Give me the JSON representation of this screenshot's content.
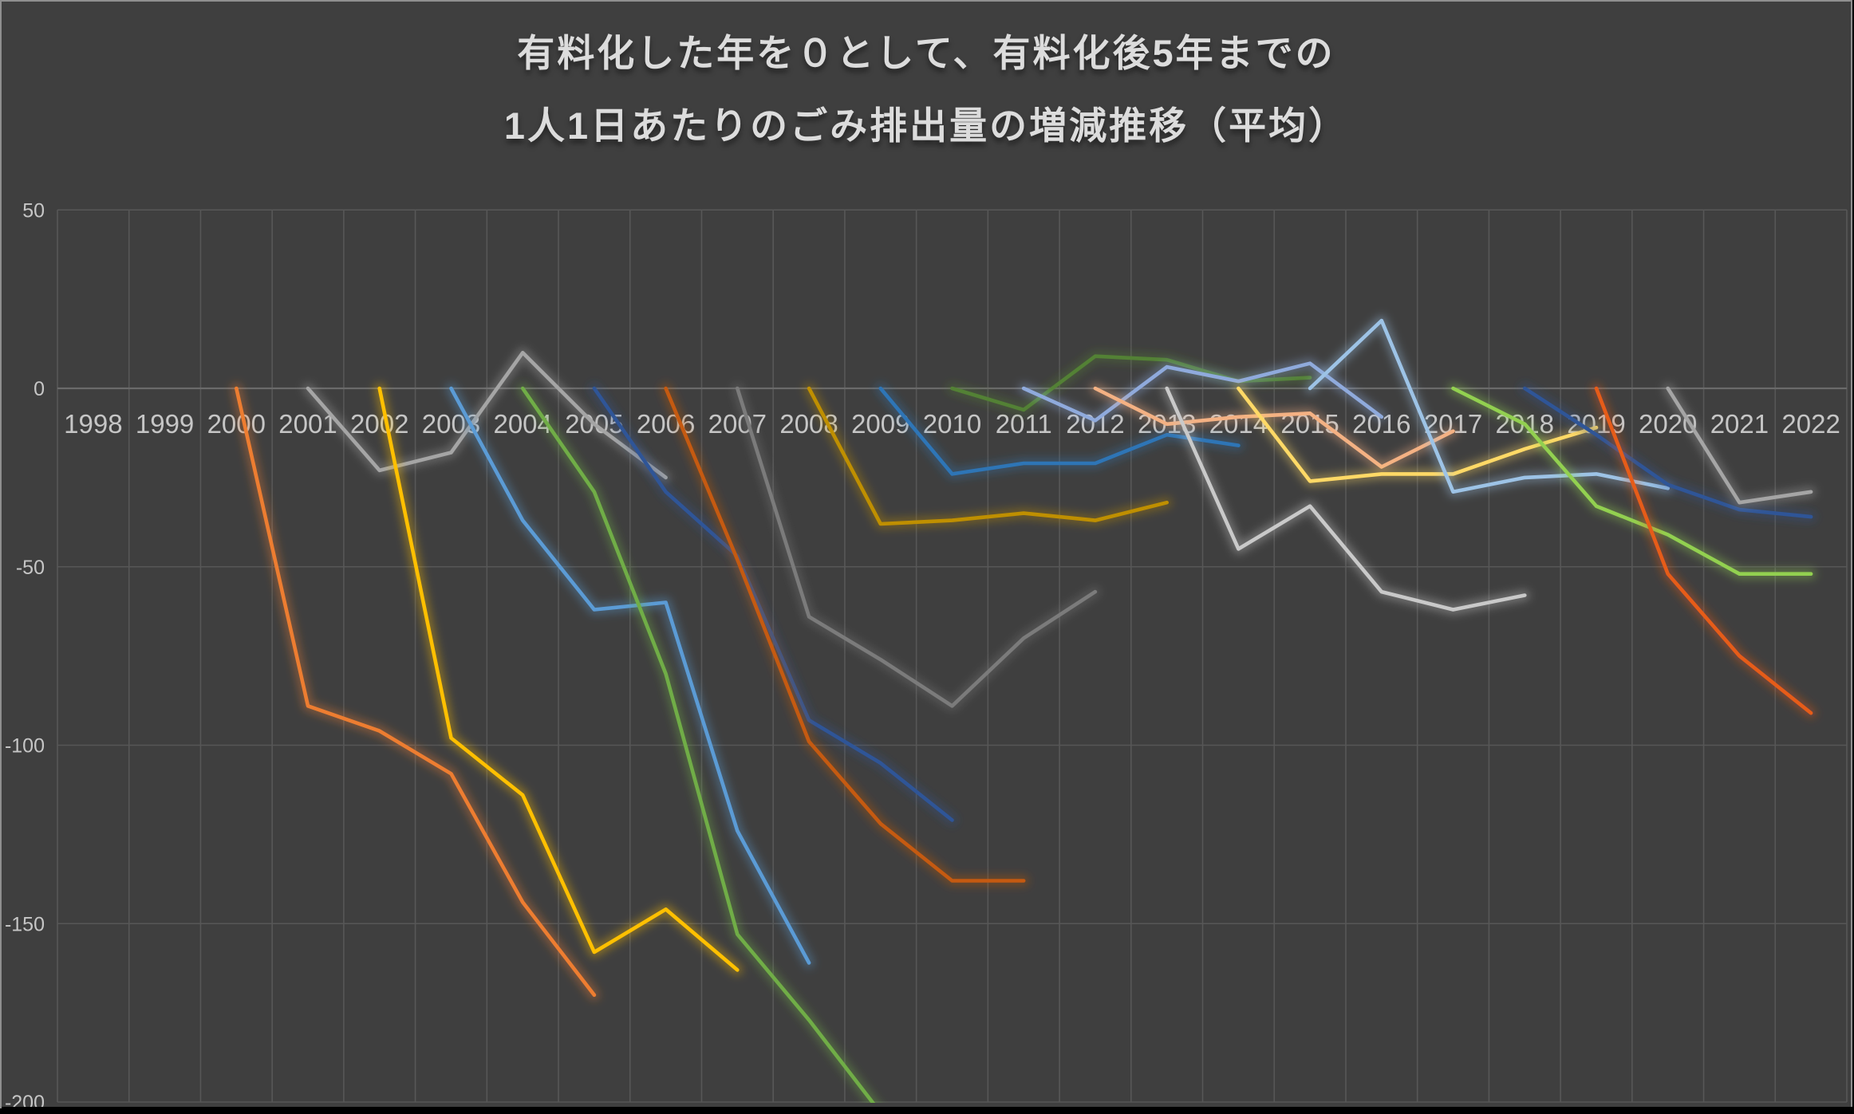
{
  "chart_data": {
    "type": "line",
    "title_lines": [
      "有料化した年を０として、有料化後5年までの",
      "1人1日あたりのごみ排出量の増減推移（平均）"
    ],
    "xlabel": "",
    "ylabel": "",
    "xlim": [
      1997.5,
      2022.5
    ],
    "ylim": [
      -200,
      50
    ],
    "x_ticks": [
      1998,
      1999,
      2000,
      2001,
      2002,
      2003,
      2004,
      2005,
      2006,
      2007,
      2008,
      2009,
      2010,
      2011,
      2012,
      2013,
      2014,
      2015,
      2016,
      2017,
      2018,
      2019,
      2020,
      2021,
      2022
    ],
    "y_ticks": [
      50,
      0,
      -50,
      -100,
      -150,
      -200
    ],
    "grid": true,
    "legend_position": "none",
    "colors": {
      "background": "#3F3F3F",
      "gridline": "#575757",
      "zero_line": "#6A6A6A",
      "tick_label": "#C6C6C6",
      "title": "#DCDCDC"
    },
    "series": [
      {
        "name": "2000",
        "start_year": 2000,
        "color": "#ED7D31",
        "values": [
          0,
          -89,
          -96,
          -108,
          -144,
          -170
        ]
      },
      {
        "name": "2001",
        "start_year": 2001,
        "color": "#A5A5A5",
        "values": [
          0,
          -23,
          -18,
          10,
          -10,
          -25
        ]
      },
      {
        "name": "2002",
        "start_year": 2002,
        "color": "#FFC000",
        "values": [
          0,
          -98,
          -114,
          -158,
          -146,
          -163
        ]
      },
      {
        "name": "2003",
        "start_year": 2003,
        "color": "#5B9BD5",
        "values": [
          0,
          -37,
          -62,
          -60,
          -124,
          -161
        ]
      },
      {
        "name": "2004",
        "start_year": 2004,
        "color": "#70AD47",
        "values": [
          0,
          -29,
          -80,
          -153,
          -177,
          -203
        ]
      },
      {
        "name": "2005",
        "start_year": 2005,
        "color": "#2F5597",
        "values": [
          0,
          -29,
          -47,
          -93,
          -105,
          -121
        ]
      },
      {
        "name": "2006",
        "start_year": 2006,
        "color": "#C55A11",
        "values": [
          0,
          -48,
          -99,
          -122,
          -138,
          -138
        ]
      },
      {
        "name": "2007",
        "start_year": 2007,
        "color": "#7B7B7B",
        "values": [
          0,
          -64,
          -76,
          -89,
          -70,
          -57
        ]
      },
      {
        "name": "2008",
        "start_year": 2008,
        "color": "#BF8F00",
        "values": [
          0,
          -38,
          -37,
          -35,
          -37,
          -32
        ]
      },
      {
        "name": "2009",
        "start_year": 2009,
        "color": "#2E75B6",
        "values": [
          0,
          -24,
          -21,
          -21,
          -13,
          -16
        ]
      },
      {
        "name": "2010",
        "start_year": 2010,
        "color": "#538135",
        "values": [
          0,
          -6,
          9,
          8,
          2,
          3
        ]
      },
      {
        "name": "2011",
        "start_year": 2011,
        "color": "#8FAADC",
        "values": [
          0,
          -9,
          6,
          2,
          7,
          -8
        ]
      },
      {
        "name": "2012",
        "start_year": 2012,
        "color": "#F4B183",
        "values": [
          0,
          -10,
          -8,
          -7,
          -22,
          -12
        ]
      },
      {
        "name": "2013",
        "start_year": 2013,
        "color": "#C9C9C9",
        "values": [
          0,
          -45,
          -33,
          -57,
          -62,
          -58
        ]
      },
      {
        "name": "2014",
        "start_year": 2014,
        "color": "#FFD966",
        "values": [
          0,
          -26,
          -24,
          -24,
          -17,
          -11
        ]
      },
      {
        "name": "2015",
        "start_year": 2015,
        "color": "#9DC3E6",
        "values": [
          0,
          19,
          -29,
          -25,
          -24,
          -28
        ]
      },
      {
        "name": "2017",
        "start_year": 2017,
        "color": "#92D050",
        "values": [
          0,
          -10,
          -33,
          -41,
          -52,
          -52
        ]
      },
      {
        "name": "2018",
        "start_year": 2018,
        "color": "#2F5597",
        "values": [
          0,
          -13,
          -27,
          -34,
          -36
        ]
      },
      {
        "name": "2019",
        "start_year": 2019,
        "color": "#E65C19",
        "values": [
          0,
          -52,
          -75,
          -91
        ]
      },
      {
        "name": "2020",
        "start_year": 2020,
        "color": "#A5A5A5",
        "values": [
          0,
          -32,
          -29
        ]
      }
    ]
  }
}
